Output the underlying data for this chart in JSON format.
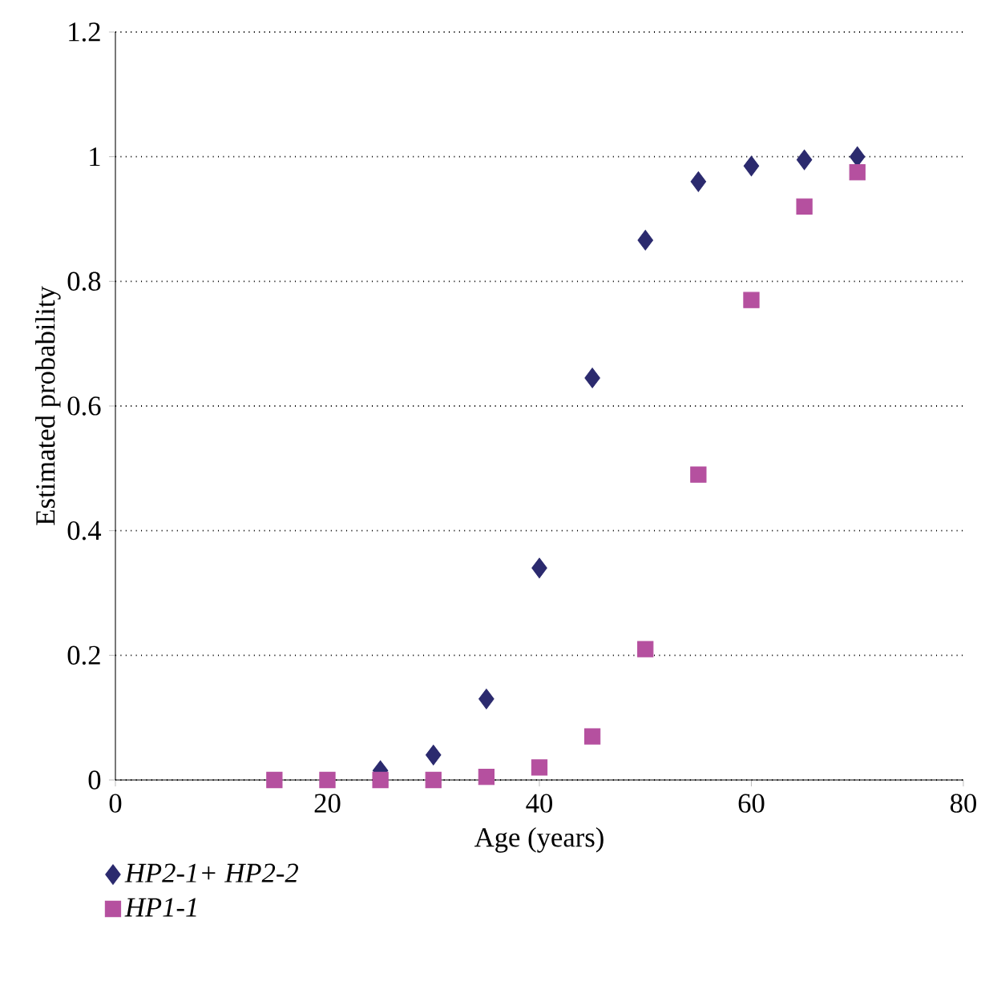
{
  "chart_data": {
    "type": "scatter",
    "xlabel": "Age (years)",
    "ylabel": "Estimated probability",
    "xlim": [
      0,
      80
    ],
    "ylim": [
      0,
      1.2
    ],
    "xticks": [
      0,
      20,
      40,
      60,
      80
    ],
    "yticks": [
      0,
      0.2,
      0.4,
      0.6,
      0.8,
      1,
      1.2
    ],
    "grid": "y",
    "legend": "bottom",
    "series": [
      {
        "name": "HP2-1+ HP2-2",
        "color": "#2b2a6e",
        "marker": "diamond",
        "x": [
          25,
          30,
          35,
          40,
          45,
          50,
          55,
          60,
          65,
          70
        ],
        "values": [
          0.015,
          0.04,
          0.13,
          0.34,
          0.645,
          0.866,
          0.96,
          0.985,
          0.995,
          1.0
        ]
      },
      {
        "name": "HP1-1",
        "color": "#b5509f",
        "marker": "square",
        "x": [
          15,
          20,
          25,
          30,
          35,
          40,
          45,
          50,
          55,
          60,
          65,
          70
        ],
        "values": [
          0,
          0,
          0,
          0,
          0.005,
          0.02,
          0.07,
          0.21,
          0.49,
          0.77,
          0.92,
          0.975
        ]
      }
    ]
  }
}
